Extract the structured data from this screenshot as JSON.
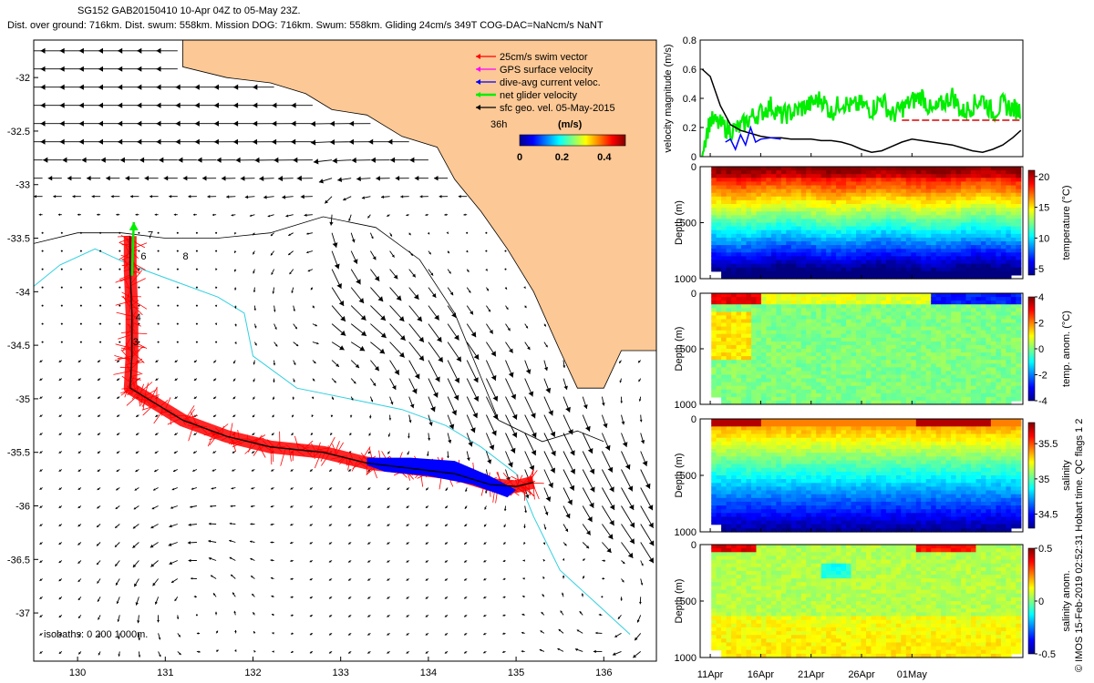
{
  "title_line1": "SG152 GAB20150410 10-Apr 04Z to 05-May 23Z.",
  "title_line2": "Dist. over ground: 716km. Dist. swum: 558km. Mission DOG: 716km. Swum: 558km. Gliding 24cm/s 349T COG-DAC=NaNcm/s NaNT",
  "side_credit": "© IMOS 15-Feb-2019 02:52:31 Hobart time. QC flags 1  2",
  "colors": {
    "land": "#fcc895",
    "isobath_200": "#000000",
    "isobath_1000": "#30d0e0",
    "swim_vector": "#ff0000",
    "gps_velocity": "#ff00ff",
    "dac_velocity": "#0000ff",
    "net_velocity": "#00ee00",
    "geostrophic": "#000000",
    "mean_line": "#dd0000"
  },
  "chart_data": [
    {
      "type": "map",
      "title": "Glider track with surface geostrophic velocity",
      "xlim": [
        129.5,
        136.6
      ],
      "ylim": [
        -37.45,
        -31.65
      ],
      "xticks": [
        130,
        131,
        132,
        133,
        134,
        135,
        136
      ],
      "yticks": [
        -32,
        -32.5,
        -33,
        -33.5,
        -34,
        -34.5,
        -35,
        -35.5,
        -36,
        -36.5,
        -37
      ],
      "legend": [
        {
          "label": "25cm/s swim vector",
          "color": "#ff0000"
        },
        {
          "label": "GPS surface velocity",
          "color": "#ff00ff"
        },
        {
          "label": "dive-avg current veloc.",
          "color": "#0000ff"
        },
        {
          "label": "net glider velocity",
          "color": "#00ee00"
        },
        {
          "label": "sfc geo. vel. 05-May-2015",
          "color": "#000000"
        }
      ],
      "legend_note": "36h",
      "colorbar": {
        "label": "(m/s)",
        "ticks": [
          "0",
          "0.2",
          "0.4"
        ],
        "range": [
          0,
          0.5
        ]
      },
      "isobaths_label": "isobaths: 0  200  1000m.",
      "track_day_labels": [
        {
          "label": "7",
          "lon": 130.8,
          "lat": -33.5
        },
        {
          "label": "6",
          "lon": 130.72,
          "lat": -33.7
        },
        {
          "label": "8",
          "lon": 131.2,
          "lat": -33.7
        },
        {
          "label": "4",
          "lon": 130.66,
          "lat": -34.27
        },
        {
          "label": "3",
          "lon": 130.63,
          "lat": -34.5
        }
      ],
      "track": [
        [
          130.6,
          -33.48
        ],
        [
          130.6,
          -33.8
        ],
        [
          130.62,
          -34.2
        ],
        [
          130.62,
          -34.6
        ],
        [
          130.6,
          -34.9
        ],
        [
          130.8,
          -35.0
        ],
        [
          131.2,
          -35.2
        ],
        [
          131.7,
          -35.35
        ],
        [
          132.2,
          -35.45
        ],
        [
          132.8,
          -35.5
        ],
        [
          133.3,
          -35.6
        ],
        [
          133.8,
          -35.65
        ],
        [
          134.3,
          -35.7
        ],
        [
          134.7,
          -35.8
        ],
        [
          135.0,
          -35.82
        ],
        [
          135.2,
          -35.78
        ]
      ],
      "gyres": [
        {
          "lon": 132.8,
          "lat": -34.05,
          "sense": "ccw"
        },
        {
          "lon": 131.25,
          "lat": -36.85,
          "sense": "ccw"
        },
        {
          "lon": 136.1,
          "lat": -37.0,
          "sense": "cw"
        }
      ]
    },
    {
      "type": "line",
      "ylabel": "velocity magnitude (m/s)",
      "ylim": [
        0,
        0.8
      ],
      "yticks": [
        0,
        0.2,
        0.4,
        0.6,
        0.8
      ],
      "x_range_days": [
        10,
        42
      ],
      "series": [
        {
          "name": "net glider velocity",
          "color": "#00ee00",
          "x": [
            10.2,
            11,
            12,
            13,
            14,
            15,
            16,
            17,
            18,
            19,
            20,
            21,
            22,
            23,
            24,
            25,
            26,
            27,
            28,
            29,
            30,
            31,
            32,
            33,
            34,
            35,
            36,
            37,
            38,
            39,
            40,
            41,
            41.8
          ],
          "values": [
            0.05,
            0.25,
            0.22,
            0.18,
            0.2,
            0.27,
            0.3,
            0.35,
            0.28,
            0.3,
            0.33,
            0.36,
            0.4,
            0.3,
            0.38,
            0.34,
            0.36,
            0.32,
            0.4,
            0.28,
            0.33,
            0.38,
            0.42,
            0.3,
            0.36,
            0.42,
            0.3,
            0.35,
            0.4,
            0.3,
            0.36,
            0.33,
            0.32
          ]
        },
        {
          "name": "sfc geo. vel.",
          "color": "#000000",
          "x": [
            10.2,
            11,
            12,
            13,
            14,
            15,
            16,
            17,
            18,
            19,
            20,
            21,
            22,
            23,
            24,
            25,
            26,
            27,
            28,
            29,
            30,
            31,
            32,
            33,
            34,
            35,
            36,
            37,
            38,
            39,
            40,
            41,
            41.8
          ],
          "values": [
            0.6,
            0.55,
            0.35,
            0.22,
            0.18,
            0.16,
            0.14,
            0.13,
            0.13,
            0.12,
            0.12,
            0.12,
            0.11,
            0.11,
            0.1,
            0.08,
            0.05,
            0.03,
            0.04,
            0.07,
            0.1,
            0.12,
            0.11,
            0.1,
            0.09,
            0.08,
            0.06,
            0.04,
            0.03,
            0.05,
            0.08,
            0.13,
            0.18
          ]
        },
        {
          "name": "dive-avg current",
          "color": "#0000ff",
          "x": [
            12.5,
            13,
            13.5,
            14,
            14.5,
            15,
            15.5,
            16,
            17,
            18
          ],
          "values": [
            0.1,
            0.12,
            0.05,
            0.15,
            0.08,
            0.2,
            0.1,
            0.12,
            0.13,
            0.12
          ]
        },
        {
          "name": "mean",
          "color": "#dd0000",
          "x": [
            30,
            41.8
          ],
          "values": [
            0.25,
            0.25
          ]
        }
      ],
      "xticks": [
        "11Apr",
        "16Apr",
        "21Apr",
        "26Apr",
        "01May"
      ]
    },
    {
      "type": "heatmap",
      "variable": "temperature",
      "ylabel": "Depth (m)",
      "yticks": [
        "0",
        "500",
        "1000"
      ],
      "ylim": [
        0,
        1000
      ],
      "colorbar_label": "temperature (°C)",
      "colorbar_ticks": [
        "5",
        "10",
        "15",
        "20"
      ],
      "crange": [
        4,
        21
      ]
    },
    {
      "type": "heatmap",
      "variable": "temp. anom.",
      "ylabel": "Depth (m)",
      "yticks": [
        "0",
        "500",
        "1000"
      ],
      "ylim": [
        0,
        1000
      ],
      "colorbar_label": "temp. anom. (°C)",
      "colorbar_ticks": [
        "-4",
        "-2",
        "0",
        "2",
        "4"
      ],
      "crange": [
        -4,
        4
      ]
    },
    {
      "type": "heatmap",
      "variable": "salinity",
      "ylabel": "Depth (m)",
      "yticks": [
        "0",
        "500",
        "1000"
      ],
      "ylim": [
        0,
        1000
      ],
      "colorbar_label": "salinity",
      "colorbar_ticks": [
        "34.5",
        "35",
        "35.5"
      ],
      "crange": [
        34.3,
        35.8
      ]
    },
    {
      "type": "heatmap",
      "variable": "salinity anom.",
      "ylabel": "Depth (m)",
      "yticks": [
        "0",
        "500",
        "1000"
      ],
      "ylim": [
        0,
        1000
      ],
      "colorbar_label": "salinity anom.",
      "colorbar_ticks": [
        "-0.5",
        "0",
        "0.5"
      ],
      "crange": [
        -0.5,
        0.5
      ],
      "xticks": [
        "11Apr",
        "16Apr",
        "21Apr",
        "26Apr",
        "01May"
      ]
    }
  ]
}
